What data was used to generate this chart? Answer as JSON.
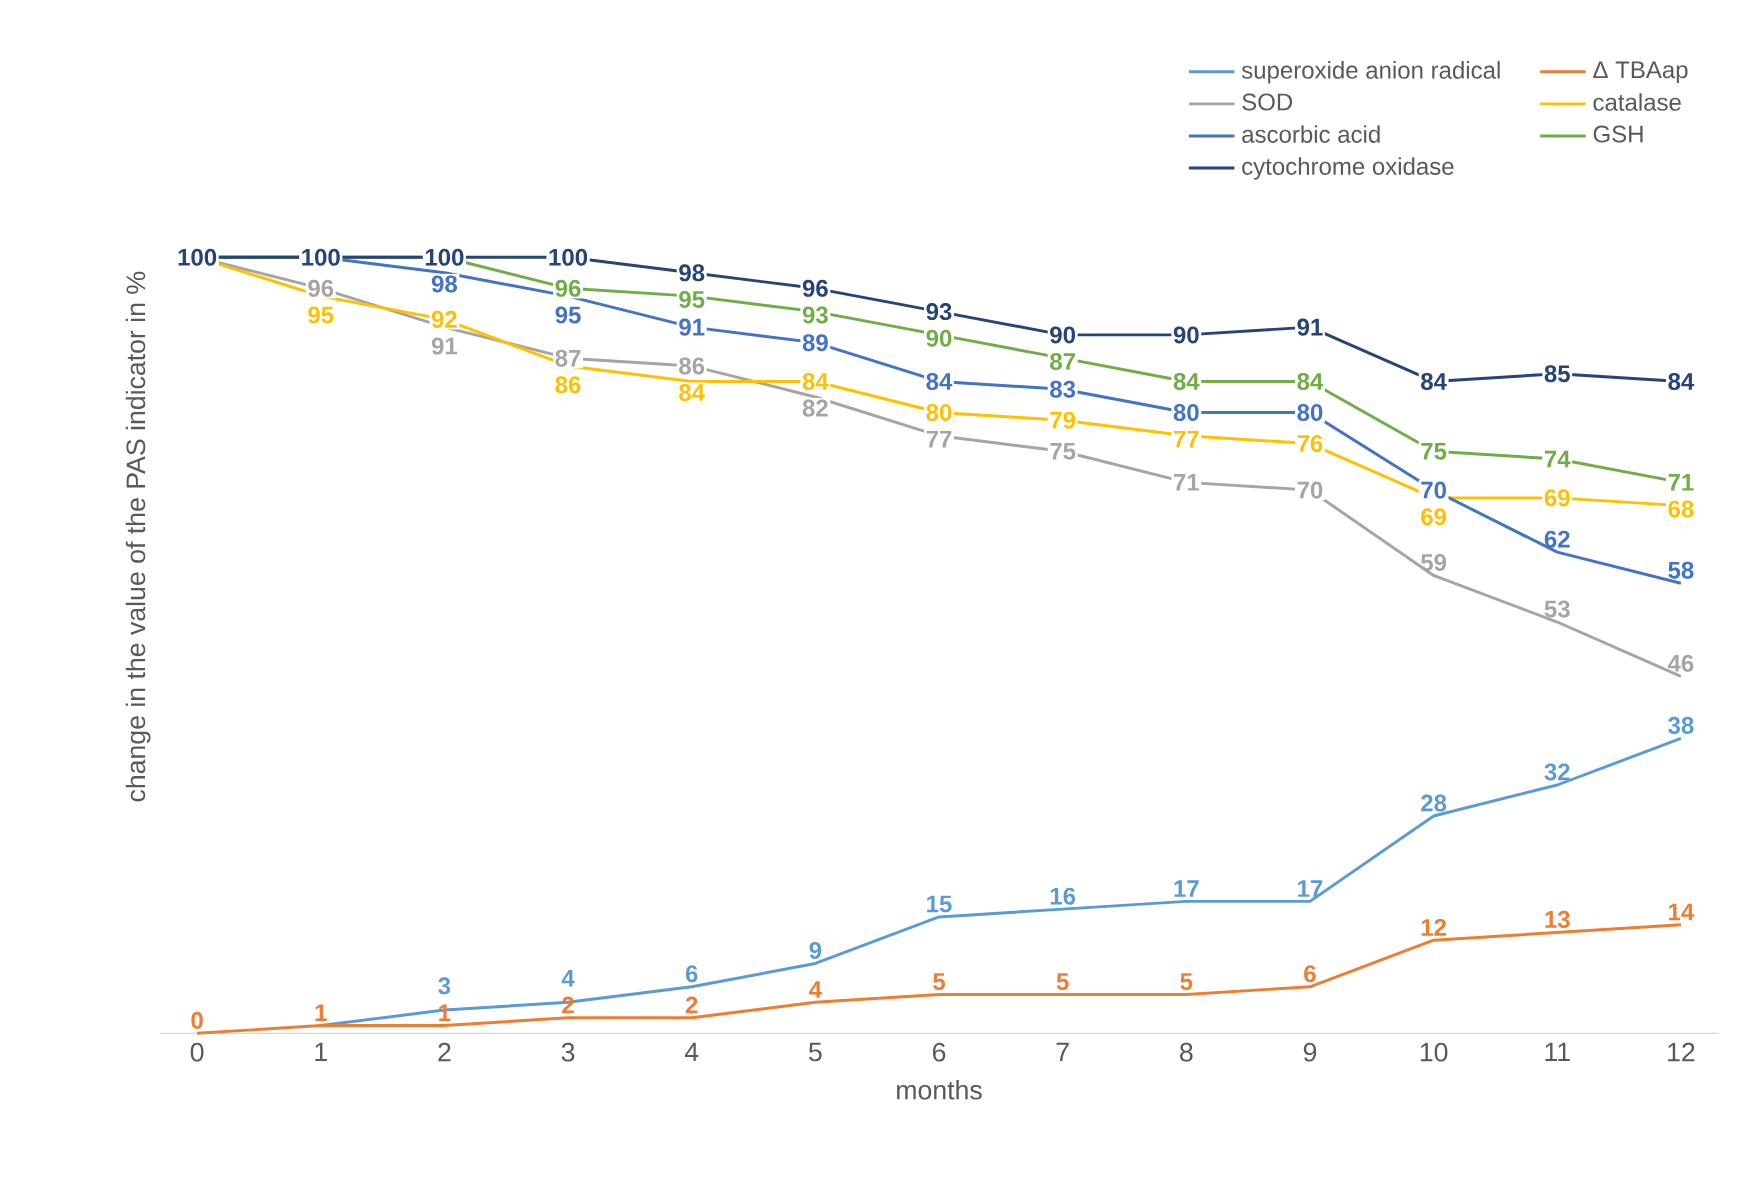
{
  "chart_data": {
    "type": "line",
    "xlabel": "months",
    "ylabel": "change in the value of the PAS indicator in %",
    "categories": [
      "0",
      "1",
      "2",
      "3",
      "4",
      "5",
      "6",
      "7",
      "8",
      "9",
      "10",
      "11",
      "12"
    ],
    "series": [
      {
        "name": "superoxide anion radical",
        "color": "#5b9bd5",
        "values": [
          null,
          1,
          3,
          4,
          6,
          9,
          15,
          16,
          17,
          17,
          28,
          32,
          38
        ],
        "value_labels": [
          null,
          null,
          "3",
          "4",
          "6",
          "9",
          "15",
          "16",
          "17",
          "17",
          "28",
          "32",
          "38"
        ]
      },
      {
        "name": "Δ TBAap",
        "color": "#ed7d31",
        "values": [
          0,
          1,
          1,
          2,
          2,
          4,
          5,
          5,
          5,
          6,
          12,
          13,
          14
        ],
        "value_labels": [
          "0",
          "1",
          "1",
          "2",
          "2",
          "4",
          "5",
          "5",
          "5",
          "6",
          "12",
          "13",
          "14"
        ]
      },
      {
        "name": "SOD",
        "color": "#a5a5a5",
        "values": [
          100,
          96,
          91,
          87,
          86,
          82,
          77,
          75,
          71,
          70,
          59,
          53,
          46
        ],
        "value_labels": [
          null,
          "96",
          "91",
          "87",
          "86",
          "82",
          "77",
          "75",
          "71",
          "70",
          "59",
          "53",
          "46"
        ]
      },
      {
        "name": "catalase",
        "color": "#ffc000",
        "values": [
          100,
          95,
          92,
          86,
          84,
          84,
          80,
          79,
          77,
          76,
          69,
          69,
          68
        ],
        "value_labels": [
          null,
          "95",
          "92",
          "86",
          "84",
          "84",
          "80",
          "79",
          "77",
          "76",
          "69",
          "69",
          "68"
        ]
      },
      {
        "name": "ascorbic acid",
        "color": "#4472c4",
        "values": [
          100,
          100,
          98,
          95,
          91,
          89,
          84,
          83,
          80,
          80,
          70,
          62,
          58
        ],
        "value_labels": [
          null,
          null,
          "98",
          "95",
          "91",
          "89",
          "84",
          "83",
          "80",
          "80",
          "70",
          "62",
          "58"
        ]
      },
      {
        "name": "GSH",
        "color": "#70ad47",
        "values": [
          100,
          100,
          100,
          96,
          95,
          93,
          90,
          87,
          84,
          84,
          75,
          74,
          71
        ],
        "value_labels": [
          null,
          null,
          null,
          "96",
          "95",
          "93",
          "90",
          "87",
          "84",
          "84",
          "75",
          "74",
          "71"
        ]
      },
      {
        "name": "cytochrome oxidase",
        "color": "#264478",
        "values": [
          100,
          100,
          100,
          100,
          98,
          96,
          93,
          90,
          90,
          91,
          84,
          85,
          84
        ],
        "value_labels": [
          "100",
          "100",
          "100",
          "100",
          "98",
          "96",
          "93",
          "90",
          "90",
          "91",
          "84",
          "85",
          "84"
        ]
      }
    ],
    "tick_labels": "x",
    "legend": "top right",
    "grid": false,
    "line_style": "solid"
  }
}
